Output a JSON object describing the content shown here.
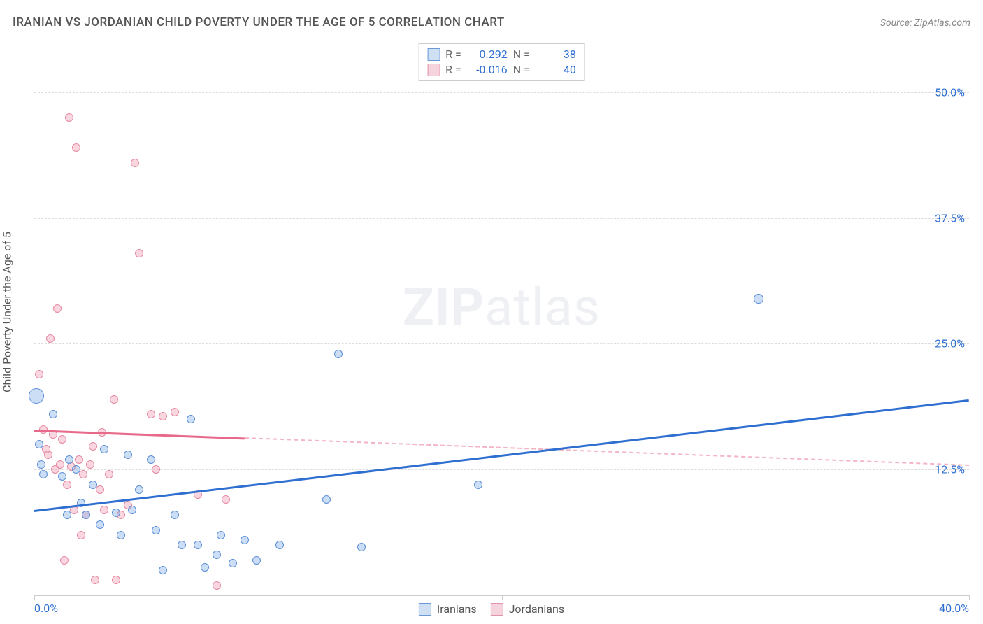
{
  "title": "IRANIAN VS JORDANIAN CHILD POVERTY UNDER THE AGE OF 5 CORRELATION CHART",
  "source_label": "Source: ZipAtlas.com",
  "y_axis_title": "Child Poverty Under the Age of 5",
  "watermark": {
    "bold": "ZIP",
    "rest": "atlas"
  },
  "xlim": [
    0,
    40
  ],
  "ylim": [
    0,
    55
  ],
  "x_tick_positions": [
    0,
    10,
    20,
    30,
    40
  ],
  "x_tick_labels_shown": {
    "0": "0.0%",
    "40": "40.0%"
  },
  "y_ticks": [
    {
      "v": 12.5,
      "label": "12.5%"
    },
    {
      "v": 25.0,
      "label": "25.0%"
    },
    {
      "v": 37.5,
      "label": "37.5%"
    },
    {
      "v": 50.0,
      "label": "50.0%"
    }
  ],
  "series": {
    "iranians": {
      "label": "Iranians",
      "color_fill": "rgba(110,160,225,0.35)",
      "color_stroke": "#5a8ed6",
      "R_label": "R =",
      "R": "0.292",
      "N_label": "N =",
      "N": "38",
      "trend": {
        "y_at_x0": 8.5,
        "y_at_x40": 19.5,
        "solid_until_x": 40
      },
      "points": [
        {
          "x": 0.1,
          "y": 19.8,
          "r": 11
        },
        {
          "x": 0.2,
          "y": 15.0,
          "r": 6
        },
        {
          "x": 0.3,
          "y": 13.0,
          "r": 6
        },
        {
          "x": 0.4,
          "y": 12.0,
          "r": 6
        },
        {
          "x": 0.8,
          "y": 18.0,
          "r": 6
        },
        {
          "x": 1.2,
          "y": 11.8,
          "r": 6
        },
        {
          "x": 1.4,
          "y": 8.0,
          "r": 6
        },
        {
          "x": 1.5,
          "y": 13.5,
          "r": 6
        },
        {
          "x": 1.8,
          "y": 12.5,
          "r": 6
        },
        {
          "x": 2.0,
          "y": 9.2,
          "r": 6
        },
        {
          "x": 2.2,
          "y": 8.0,
          "r": 6
        },
        {
          "x": 2.5,
          "y": 11.0,
          "r": 6
        },
        {
          "x": 2.8,
          "y": 7.0,
          "r": 6
        },
        {
          "x": 3.0,
          "y": 14.5,
          "r": 6
        },
        {
          "x": 3.5,
          "y": 8.2,
          "r": 6
        },
        {
          "x": 3.7,
          "y": 6.0,
          "r": 6
        },
        {
          "x": 4.0,
          "y": 14.0,
          "r": 6
        },
        {
          "x": 4.2,
          "y": 8.5,
          "r": 6
        },
        {
          "x": 4.5,
          "y": 10.5,
          "r": 6
        },
        {
          "x": 5.0,
          "y": 13.5,
          "r": 6
        },
        {
          "x": 5.2,
          "y": 6.5,
          "r": 6
        },
        {
          "x": 5.5,
          "y": 2.5,
          "r": 6
        },
        {
          "x": 6.0,
          "y": 8.0,
          "r": 6
        },
        {
          "x": 6.3,
          "y": 5.0,
          "r": 6
        },
        {
          "x": 6.7,
          "y": 17.5,
          "r": 6
        },
        {
          "x": 7.0,
          "y": 5.0,
          "r": 6
        },
        {
          "x": 7.3,
          "y": 2.8,
          "r": 6
        },
        {
          "x": 7.8,
          "y": 4.0,
          "r": 6
        },
        {
          "x": 8.0,
          "y": 6.0,
          "r": 6
        },
        {
          "x": 8.5,
          "y": 3.2,
          "r": 6
        },
        {
          "x": 9.0,
          "y": 5.5,
          "r": 6
        },
        {
          "x": 9.5,
          "y": 3.5,
          "r": 6
        },
        {
          "x": 10.5,
          "y": 5.0,
          "r": 6
        },
        {
          "x": 12.5,
          "y": 9.5,
          "r": 6
        },
        {
          "x": 13.0,
          "y": 24.0,
          "r": 6
        },
        {
          "x": 14.0,
          "y": 4.8,
          "r": 6
        },
        {
          "x": 19.0,
          "y": 11.0,
          "r": 6
        },
        {
          "x": 31.0,
          "y": 29.5,
          "r": 7
        }
      ]
    },
    "jordanians": {
      "label": "Jordanians",
      "color_fill": "rgba(240,140,165,0.35)",
      "color_stroke": "#e588a0",
      "R_label": "R =",
      "R": "-0.016",
      "N_label": "N =",
      "N": "40",
      "trend": {
        "y_at_x0": 16.5,
        "y_at_x40": 13.0,
        "solid_until_x": 9
      },
      "points": [
        {
          "x": 0.2,
          "y": 22.0,
          "r": 6
        },
        {
          "x": 0.4,
          "y": 16.5,
          "r": 6
        },
        {
          "x": 0.5,
          "y": 14.5,
          "r": 6
        },
        {
          "x": 0.6,
          "y": 14.0,
          "r": 6
        },
        {
          "x": 0.7,
          "y": 25.5,
          "r": 6
        },
        {
          "x": 0.8,
          "y": 16.0,
          "r": 6
        },
        {
          "x": 0.9,
          "y": 12.5,
          "r": 6
        },
        {
          "x": 1.0,
          "y": 28.5,
          "r": 6
        },
        {
          "x": 1.1,
          "y": 13.0,
          "r": 6
        },
        {
          "x": 1.2,
          "y": 15.5,
          "r": 6
        },
        {
          "x": 1.3,
          "y": 3.5,
          "r": 6
        },
        {
          "x": 1.4,
          "y": 11.0,
          "r": 6
        },
        {
          "x": 1.5,
          "y": 47.5,
          "r": 6
        },
        {
          "x": 1.6,
          "y": 12.8,
          "r": 6
        },
        {
          "x": 1.7,
          "y": 8.5,
          "r": 6
        },
        {
          "x": 1.8,
          "y": 44.5,
          "r": 6
        },
        {
          "x": 1.9,
          "y": 13.5,
          "r": 6
        },
        {
          "x": 2.0,
          "y": 6.0,
          "r": 6
        },
        {
          "x": 2.1,
          "y": 12.0,
          "r": 6
        },
        {
          "x": 2.2,
          "y": 8.0,
          "r": 6
        },
        {
          "x": 2.4,
          "y": 13.0,
          "r": 6
        },
        {
          "x": 2.5,
          "y": 14.8,
          "r": 6
        },
        {
          "x": 2.6,
          "y": 1.5,
          "r": 6
        },
        {
          "x": 2.8,
          "y": 10.5,
          "r": 6
        },
        {
          "x": 2.9,
          "y": 16.2,
          "r": 6
        },
        {
          "x": 3.0,
          "y": 8.5,
          "r": 6
        },
        {
          "x": 3.2,
          "y": 12.0,
          "r": 6
        },
        {
          "x": 3.4,
          "y": 19.5,
          "r": 6
        },
        {
          "x": 3.5,
          "y": 1.5,
          "r": 6
        },
        {
          "x": 3.7,
          "y": 8.0,
          "r": 6
        },
        {
          "x": 4.0,
          "y": 9.0,
          "r": 6
        },
        {
          "x": 4.3,
          "y": 43.0,
          "r": 6
        },
        {
          "x": 4.5,
          "y": 34.0,
          "r": 6
        },
        {
          "x": 5.0,
          "y": 18.0,
          "r": 6
        },
        {
          "x": 5.2,
          "y": 12.5,
          "r": 6
        },
        {
          "x": 5.5,
          "y": 17.8,
          "r": 6
        },
        {
          "x": 6.0,
          "y": 18.2,
          "r": 6
        },
        {
          "x": 7.0,
          "y": 10.0,
          "r": 6
        },
        {
          "x": 7.8,
          "y": 1.0,
          "r": 6
        },
        {
          "x": 8.2,
          "y": 9.5,
          "r": 6
        }
      ]
    }
  },
  "colors": {
    "axis": "#cccccc",
    "grid": "#dddddd",
    "tick_label": "#2f6fd0",
    "title_text": "#555555",
    "iranians_swatch_fill": "#cfe0f5",
    "iranians_swatch_stroke": "#6a9ad8",
    "jordanians_swatch_fill": "#f6d4de",
    "jordanians_swatch_stroke": "#e093aa"
  }
}
